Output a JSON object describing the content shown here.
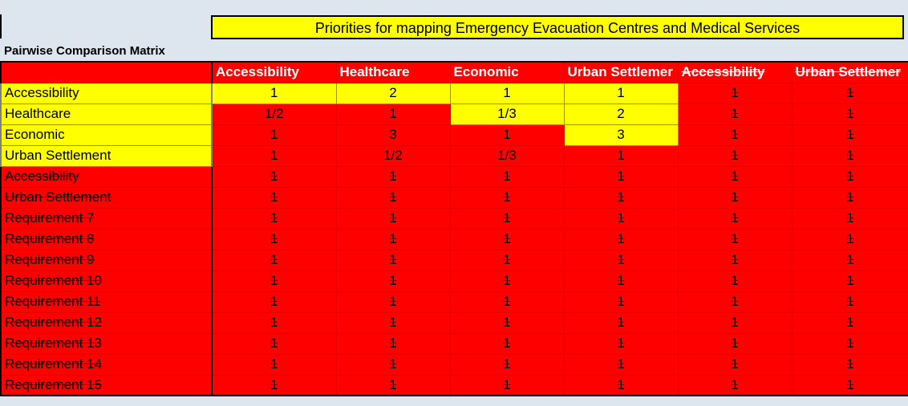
{
  "title": "Priorities for mapping Emergency Evacuation Centres and Medical Services",
  "matrix_label": "Pairwise Comparison Matrix",
  "columns": [
    {
      "label": "Accessibility",
      "struck": false
    },
    {
      "label": "Healthcare",
      "struck": false
    },
    {
      "label": "Economic",
      "struck": false
    },
    {
      "label": "Urban Settlemer",
      "struck": false
    },
    {
      "label": "Accessibility",
      "struck": true
    },
    {
      "label": "Urban Settlemer",
      "struck": true
    }
  ],
  "rows": [
    {
      "label": "Accessibility",
      "active": true,
      "values": [
        "1",
        "2",
        "1",
        "1",
        "1",
        "1"
      ]
    },
    {
      "label": "Healthcare",
      "active": true,
      "values": [
        "1/2",
        "1",
        "1/3",
        "2",
        "1",
        "1"
      ]
    },
    {
      "label": "Economic",
      "active": true,
      "values": [
        "1",
        "3",
        "1",
        "3",
        "1",
        "1"
      ]
    },
    {
      "label": "Urban Settlement",
      "active": true,
      "values": [
        "1",
        "1/2",
        "1/3",
        "1",
        "1",
        "1"
      ]
    },
    {
      "label": "Accessibility",
      "active": false,
      "values": [
        "1",
        "1",
        "1",
        "1",
        "1",
        "1"
      ]
    },
    {
      "label": "Urban Settlement",
      "active": false,
      "values": [
        "1",
        "1",
        "1",
        "1",
        "1",
        "1"
      ]
    },
    {
      "label": "Requirement 7",
      "active": false,
      "values": [
        "1",
        "1",
        "1",
        "1",
        "1",
        "1"
      ]
    },
    {
      "label": "Requirement 8",
      "active": false,
      "values": [
        "1",
        "1",
        "1",
        "1",
        "1",
        "1"
      ]
    },
    {
      "label": "Requirement 9",
      "active": false,
      "values": [
        "1",
        "1",
        "1",
        "1",
        "1",
        "1"
      ]
    },
    {
      "label": "Requirement 10",
      "active": false,
      "values": [
        "1",
        "1",
        "1",
        "1",
        "1",
        "1"
      ]
    },
    {
      "label": "Requirement 11",
      "active": false,
      "values": [
        "1",
        "1",
        "1",
        "1",
        "1",
        "1"
      ]
    },
    {
      "label": "Requirement 12",
      "active": false,
      "values": [
        "1",
        "1",
        "1",
        "1",
        "1",
        "1"
      ]
    },
    {
      "label": "Requirement 13",
      "active": false,
      "values": [
        "1",
        "1",
        "1",
        "1",
        "1",
        "1"
      ]
    },
    {
      "label": "Requirement 14",
      "active": false,
      "values": [
        "1",
        "1",
        "1",
        "1",
        "1",
        "1"
      ]
    },
    {
      "label": "Requirement 15",
      "active": false,
      "values": [
        "1",
        "1",
        "1",
        "1",
        "1",
        "1"
      ]
    }
  ],
  "colors": {
    "yellow": "#ffff00",
    "red": "#ff0000"
  }
}
